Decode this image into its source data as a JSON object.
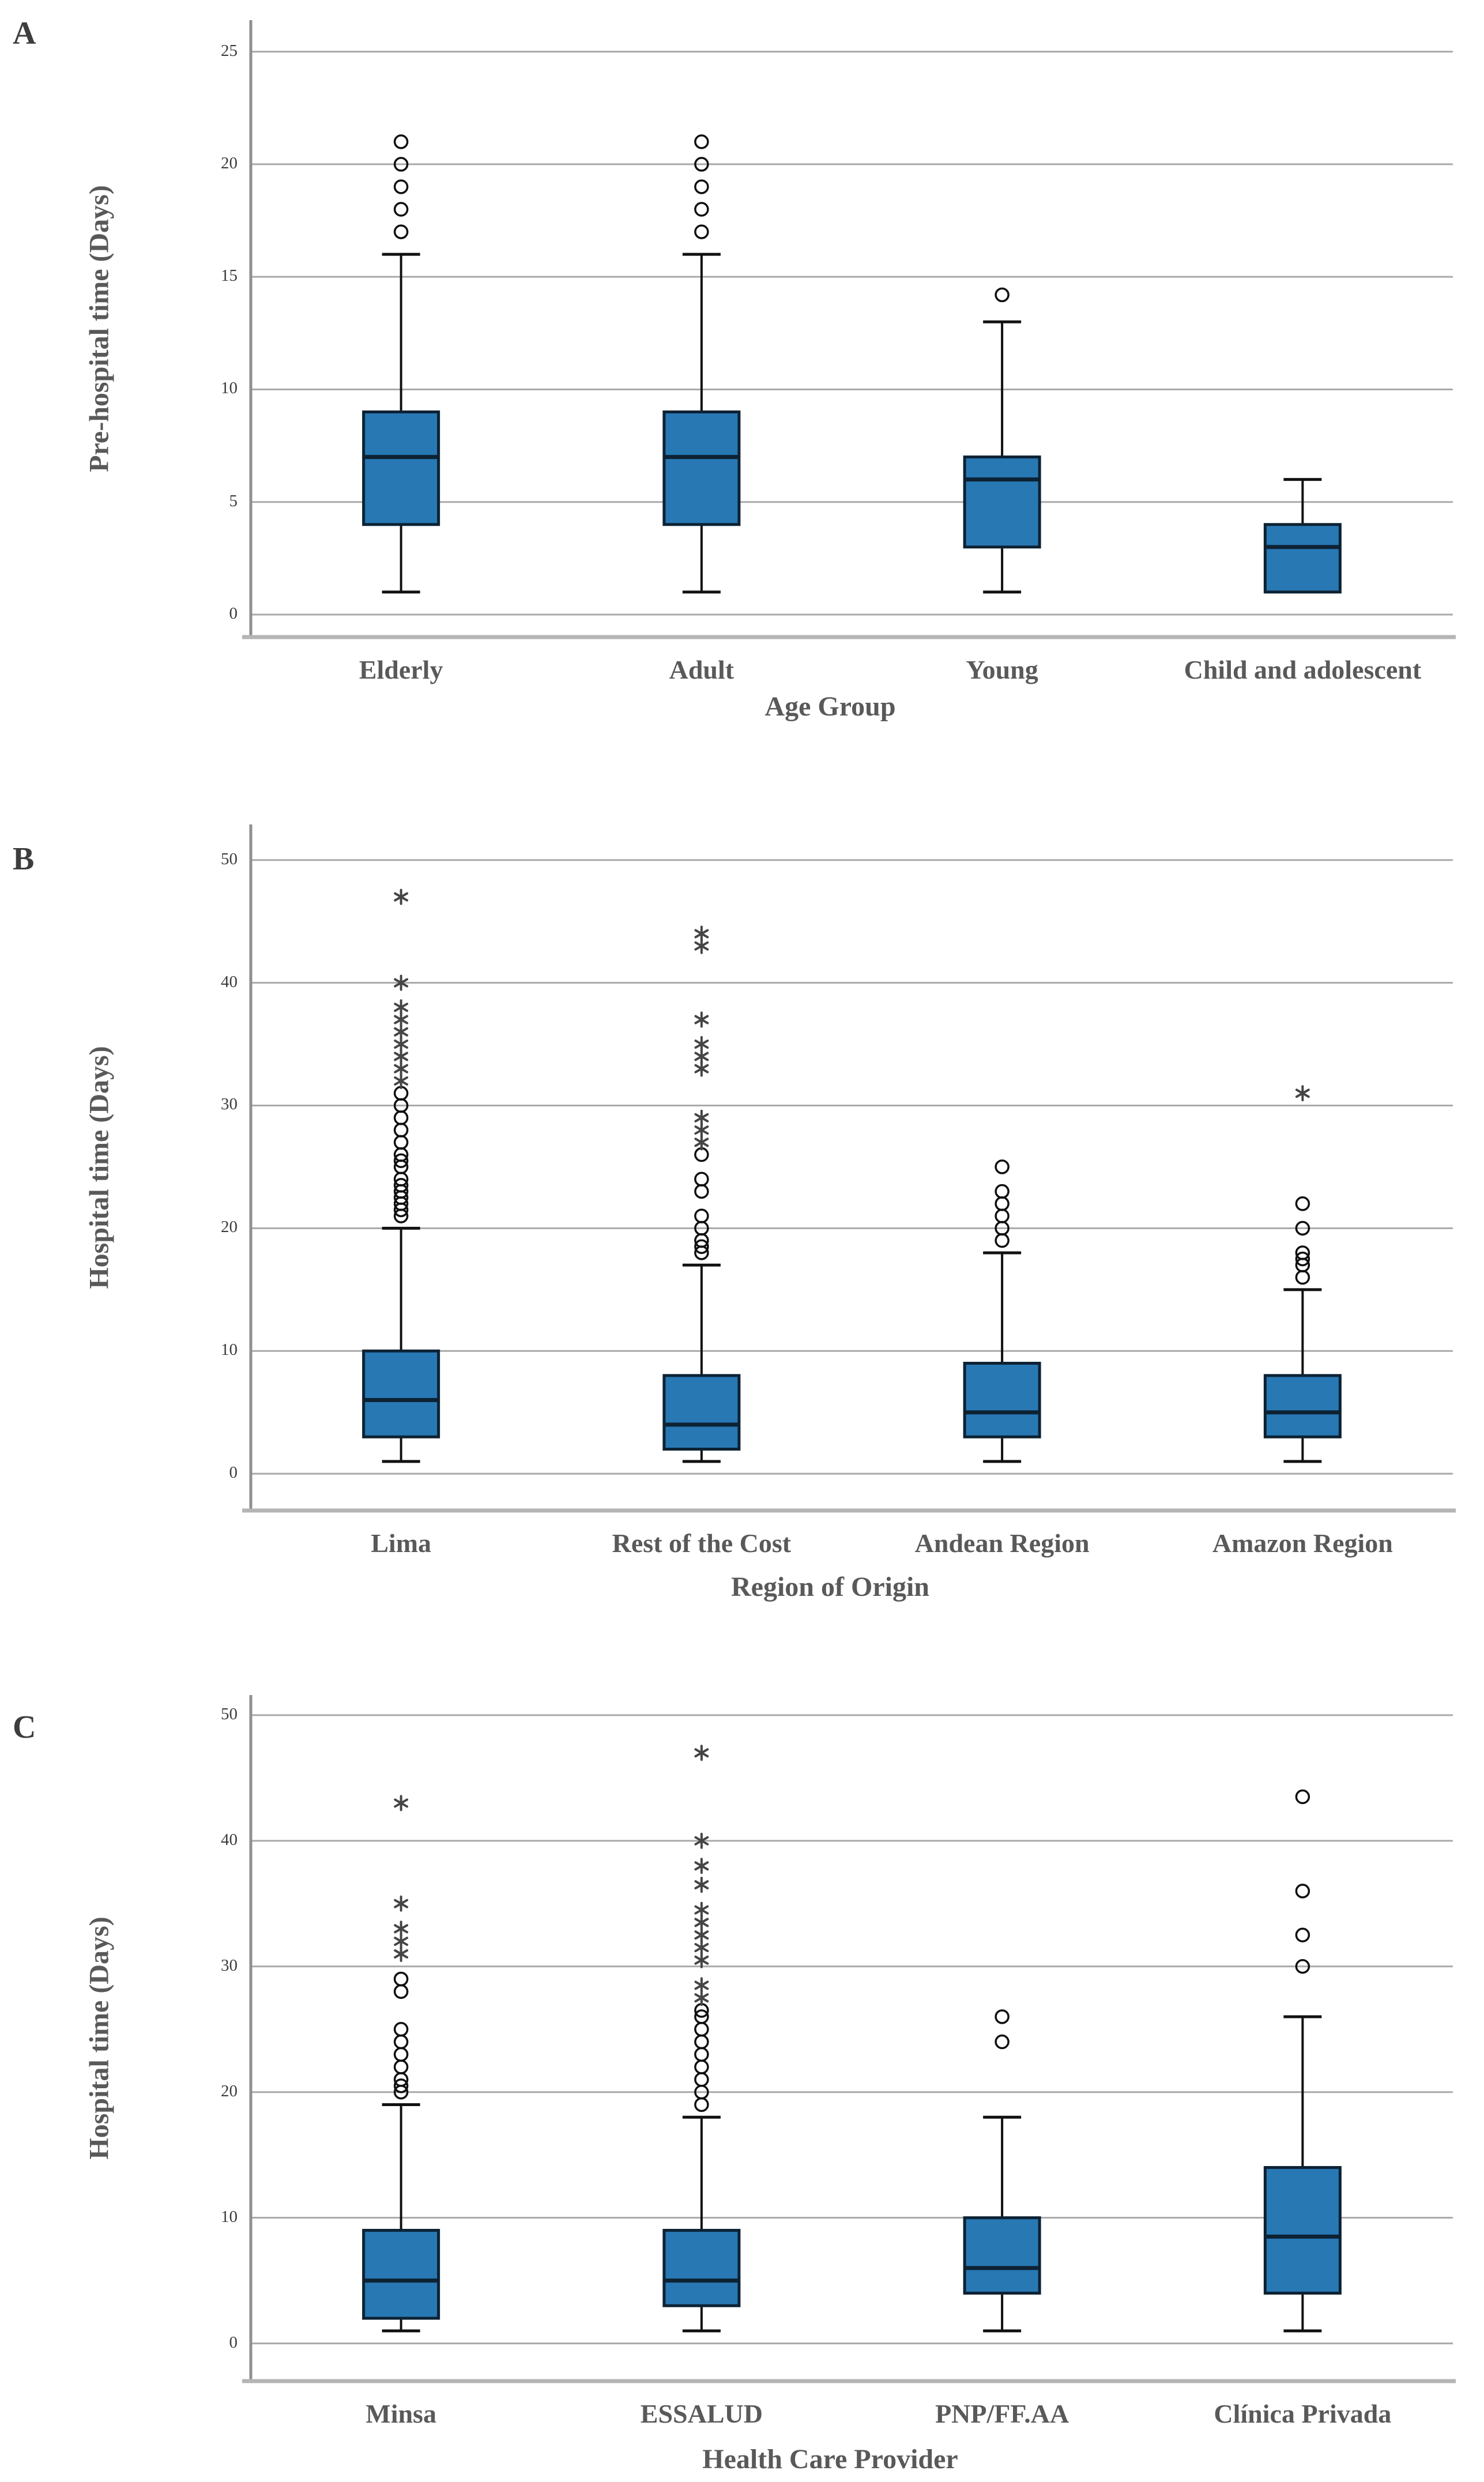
{
  "figure": {
    "panel_count": 3,
    "colors": {
      "box_fill": "#2878b4",
      "box_edge": "#0d2233",
      "median": "#0d2233",
      "whisker": "#111111",
      "outlier_circle": "#0f0f0f",
      "outlier_star": "#454545",
      "gridline": "#a9a9a9",
      "spine": "#8f8f8f",
      "baseline": "#b5b5b5",
      "tick_text": "#3c3c3c",
      "label_text": "#595959"
    }
  },
  "chart_data": [
    {
      "type": "boxplot",
      "panel_label": "A",
      "ylabel": "Pre-hospital time (Days)",
      "xlabel": "Age Group",
      "yticks": [
        0,
        5,
        10,
        15,
        20,
        25
      ],
      "ylim": [
        -1,
        26.4
      ],
      "grid": true,
      "categories": [
        "Elderly",
        "Adult",
        "Young",
        "Child and adolescent"
      ],
      "series": [
        {
          "category": "Elderly",
          "whisker_low": 1,
          "q1": 4,
          "median": 7,
          "q3": 9,
          "whisker_high": 16,
          "outliers": [
            17,
            18,
            19,
            20,
            21
          ],
          "extremes": []
        },
        {
          "category": "Adult",
          "whisker_low": 1,
          "q1": 4,
          "median": 7,
          "q3": 9,
          "whisker_high": 16,
          "outliers": [
            17,
            18,
            19,
            20,
            21
          ],
          "extremes": []
        },
        {
          "category": "Young",
          "whisker_low": 1,
          "q1": 3,
          "median": 6,
          "q3": 7,
          "whisker_high": 13,
          "outliers": [
            14.2
          ],
          "extremes": []
        },
        {
          "category": "Child and adolescent",
          "whisker_low": 1,
          "q1": 1,
          "median": 3,
          "q3": 4,
          "whisker_high": 6,
          "outliers": [],
          "extremes": []
        }
      ]
    },
    {
      "type": "boxplot",
      "panel_label": "B",
      "ylabel": "Hospital time (Days)",
      "xlabel": "Region of Origin",
      "yticks": [
        0,
        10,
        20,
        30,
        40,
        50
      ],
      "ylim": [
        -3,
        52.9
      ],
      "grid": true,
      "categories": [
        "Lima",
        "Rest of the Cost",
        "Andean Region",
        "Amazon Region"
      ],
      "series": [
        {
          "category": "Lima",
          "whisker_low": 1,
          "q1": 3,
          "median": 6,
          "q3": 10,
          "whisker_high": 20,
          "outliers": [
            21,
            21.5,
            22,
            22.5,
            23,
            23.5,
            24,
            25,
            25.5,
            26,
            27,
            28,
            29,
            30,
            31
          ],
          "extremes": [
            32,
            33,
            34,
            35,
            36,
            37,
            38,
            40,
            47
          ]
        },
        {
          "category": "Rest of the Cost",
          "whisker_low": 1,
          "q1": 2,
          "median": 4,
          "q3": 8,
          "whisker_high": 17,
          "outliers": [
            18,
            18.5,
            19,
            20,
            21,
            23,
            24,
            26
          ],
          "extremes": [
            27,
            28,
            29,
            33,
            34,
            35,
            37,
            43,
            44
          ]
        },
        {
          "category": "Andean Region",
          "whisker_low": 1,
          "q1": 3,
          "median": 5,
          "q3": 9,
          "whisker_high": 18,
          "outliers": [
            19,
            20,
            21,
            22,
            23,
            25
          ],
          "extremes": []
        },
        {
          "category": "Amazon Region",
          "whisker_low": 1,
          "q1": 3,
          "median": 5,
          "q3": 8,
          "whisker_high": 15,
          "outliers": [
            16,
            17,
            17.5,
            18,
            20,
            22
          ],
          "extremes": [
            31
          ]
        }
      ]
    },
    {
      "type": "boxplot",
      "panel_label": "C",
      "ylabel": "Hospital time (Days)",
      "xlabel": "Health Care Provider",
      "yticks": [
        0,
        10,
        20,
        30,
        40,
        50
      ],
      "ylim": [
        -3,
        51.6
      ],
      "grid": true,
      "categories": [
        "Minsa",
        "ESSALUD",
        "PNP/FF.AA",
        "Clínica Privada"
      ],
      "series": [
        {
          "category": "Minsa",
          "whisker_low": 1,
          "q1": 2,
          "median": 5,
          "q3": 9,
          "whisker_high": 19,
          "outliers": [
            20,
            20.5,
            21,
            22,
            23,
            24,
            25,
            28,
            29
          ],
          "extremes": [
            31,
            32,
            33,
            35,
            43
          ]
        },
        {
          "category": "ESSALUD",
          "whisker_low": 1,
          "q1": 3,
          "median": 5,
          "q3": 9,
          "whisker_high": 18,
          "outliers": [
            19,
            20,
            21,
            22,
            23,
            24,
            25,
            26,
            26.5
          ],
          "extremes": [
            27.5,
            28.5,
            30.5,
            31.5,
            32.5,
            33.5,
            34.5,
            36.5,
            38,
            40,
            47
          ]
        },
        {
          "category": "PNP/FF.AA",
          "whisker_low": 1,
          "q1": 4,
          "median": 6,
          "q3": 10,
          "whisker_high": 18,
          "outliers": [
            24,
            26
          ],
          "extremes": []
        },
        {
          "category": "Clínica Privada",
          "whisker_low": 1,
          "q1": 4,
          "median": 8.5,
          "q3": 14,
          "whisker_high": 26,
          "outliers": [
            30,
            32.5,
            36,
            43.5
          ],
          "extremes": []
        }
      ]
    }
  ]
}
